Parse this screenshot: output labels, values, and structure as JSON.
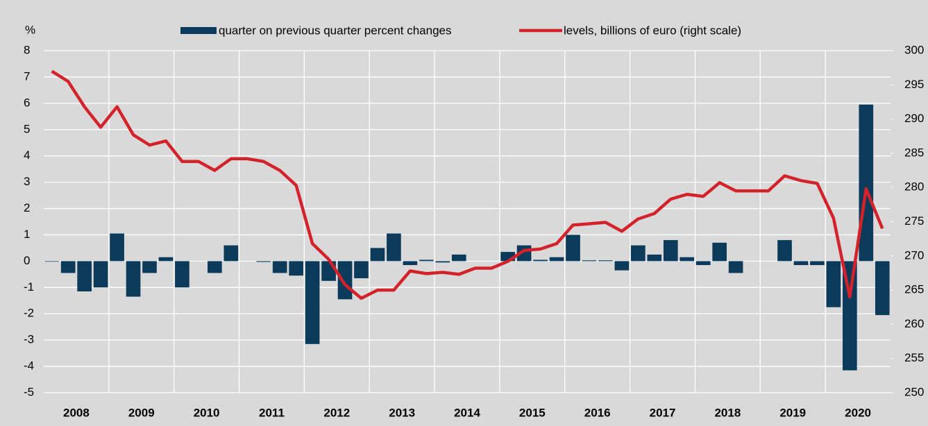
{
  "chart_data": {
    "type": "bar_line",
    "y_label": "%",
    "categories": [
      "2008",
      null,
      null,
      null,
      "2009",
      null,
      null,
      null,
      "2010",
      null,
      null,
      null,
      "2011",
      null,
      null,
      null,
      "2012",
      null,
      null,
      null,
      "2013",
      null,
      null,
      null,
      "2014",
      null,
      null,
      null,
      "2015",
      null,
      null,
      null,
      "2016",
      null,
      null,
      null,
      "2017",
      null,
      null,
      null,
      "2018",
      null,
      null,
      null,
      "2019",
      null,
      null,
      null,
      "2020",
      null,
      null,
      null
    ],
    "series": [
      {
        "name": "quarter on previous quarter percent changes",
        "type": "bar",
        "color": "#0b3a5a",
        "values": [
          -0.02,
          -0.45,
          -1.15,
          -1.0,
          1.05,
          -1.35,
          -0.45,
          0.15,
          -1.0,
          0,
          -0.45,
          0.6,
          0,
          -0.03,
          -0.45,
          -0.55,
          -3.15,
          -0.75,
          -1.45,
          -0.65,
          0.5,
          1.05,
          -0.15,
          0.05,
          -0.05,
          0.25,
          0,
          0,
          0.35,
          0.6,
          0.05,
          0.15,
          1.0,
          0.03,
          0.03,
          -0.35,
          0.6,
          0.25,
          0.8,
          0.15,
          -0.15,
          0.7,
          -0.45,
          0,
          0,
          0.8,
          -0.15,
          -0.15,
          -1.75,
          -4.15,
          5.95,
          -2.05
        ]
      },
      {
        "name": "levels, billions of euro (right scale)",
        "type": "line",
        "axis": "y2",
        "color": "#d3222a",
        "values": [
          297,
          295.5,
          291.8,
          288.8,
          291.8,
          287.7,
          286.2,
          286.8,
          283.8,
          283.8,
          282.5,
          284.2,
          284.2,
          283.8,
          282.5,
          280.3,
          271.8,
          269.5,
          265.8,
          263.8,
          265,
          265,
          267.8,
          267.4,
          267.6,
          267.3,
          268.2,
          268.2,
          269.2,
          270.8,
          271,
          271.8,
          274.5,
          274.7,
          274.9,
          273.6,
          275.4,
          276.2,
          278.3,
          279,
          278.7,
          280.7,
          279.5,
          279.5,
          279.5,
          281.7,
          281,
          280.6,
          275.5,
          264,
          279.8,
          274
        ]
      }
    ],
    "ylim": [
      -5,
      8
    ],
    "yticks": [
      8,
      7,
      6,
      5,
      4,
      3,
      2,
      1,
      0,
      -1,
      -2,
      -3,
      -4,
      -5
    ],
    "y2lim": [
      250,
      300
    ],
    "y2ticks": [
      300,
      295,
      290,
      285,
      280,
      275,
      270,
      265,
      260,
      255,
      250
    ],
    "grid": true,
    "grid_color": "#ffffff",
    "legend": "top"
  }
}
